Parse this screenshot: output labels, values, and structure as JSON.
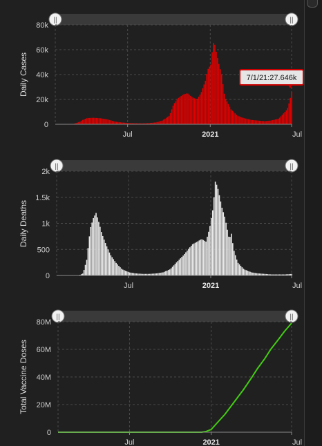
{
  "colors": {
    "cases": "#e00000",
    "deaths": "#eaeaea",
    "vaccine_line": "#44cc11",
    "background": "#202020"
  },
  "chart_data": [
    {
      "type": "bar",
      "ylabel": "Daily Cases",
      "ylim": [
        0,
        80000
      ],
      "y_ticks": [
        0,
        20000,
        40000,
        60000,
        80000
      ],
      "y_tick_labels": [
        "0",
        "20k",
        "40k",
        "60k",
        "80k"
      ],
      "x_ticks": [
        "2020-07-01",
        "2021-01-01",
        "2021-07-01"
      ],
      "x_tick_labels": [
        "Jul",
        "2021",
        "Jul"
      ],
      "x_range": [
        "2020-01-22",
        "2021-07-01"
      ],
      "grid": true,
      "series": [
        {
          "x": [
            "2020-01-22",
            "2020-03-01",
            "2020-03-15",
            "2020-03-22",
            "2020-04-01",
            "2020-04-15",
            "2020-05-01",
            "2020-05-15",
            "2020-06-01",
            "2020-06-15",
            "2020-07-01",
            "2020-07-15",
            "2020-08-01",
            "2020-08-15",
            "2020-09-01",
            "2020-09-15",
            "2020-10-01",
            "2020-10-10",
            "2020-10-20",
            "2020-11-01",
            "2020-11-10",
            "2020-11-20",
            "2020-12-01",
            "2020-12-10",
            "2020-12-20",
            "2020-12-25",
            "2021-01-01",
            "2021-01-04",
            "2021-01-08",
            "2021-01-12",
            "2021-01-18",
            "2021-01-25",
            "2021-02-01",
            "2021-02-15",
            "2021-03-01",
            "2021-03-15",
            "2021-04-01",
            "2021-04-15",
            "2021-05-01",
            "2021-05-15",
            "2021-06-01",
            "2021-06-10",
            "2021-06-20",
            "2021-06-25",
            "2021-07-01"
          ],
          "values": [
            0,
            200,
            2000,
            3500,
            5000,
            5200,
            4800,
            4000,
            2200,
            1500,
            1000,
            800,
            700,
            900,
            1500,
            3000,
            7000,
            16000,
            21000,
            24000,
            25000,
            22000,
            20000,
            25000,
            35000,
            44000,
            48000,
            58000,
            68000,
            60000,
            50000,
            40000,
            22000,
            12000,
            7000,
            5000,
            3500,
            3000,
            2500,
            3000,
            4500,
            8000,
            12000,
            18000,
            27646
          ]
        }
      ],
      "annotations": [
        "7/1/21:27.646k"
      ]
    },
    {
      "type": "bar",
      "ylabel": "Daily Deaths",
      "ylim": [
        0,
        2000
      ],
      "y_ticks": [
        0,
        500,
        1000,
        1500,
        2000
      ],
      "y_tick_labels": [
        "0",
        "500",
        "1k",
        "1.5k",
        "2k"
      ],
      "x_ticks": [
        "2020-07-01",
        "2021-01-01",
        "2021-07-01"
      ],
      "x_tick_labels": [
        "Jul",
        "2021",
        "Jul"
      ],
      "x_range": [
        "2020-01-22",
        "2021-07-01"
      ],
      "grid": true,
      "series": [
        {
          "x": [
            "2020-01-22",
            "2020-03-10",
            "2020-03-20",
            "2020-03-28",
            "2020-04-05",
            "2020-04-12",
            "2020-04-18",
            "2020-04-25",
            "2020-05-01",
            "2020-05-10",
            "2020-05-20",
            "2020-06-01",
            "2020-06-15",
            "2020-07-01",
            "2020-07-15",
            "2020-08-01",
            "2020-08-15",
            "2020-09-01",
            "2020-09-15",
            "2020-10-01",
            "2020-10-15",
            "2020-11-01",
            "2020-11-10",
            "2020-11-20",
            "2020-12-01",
            "2020-12-10",
            "2020-12-20",
            "2020-12-28",
            "2021-01-05",
            "2021-01-10",
            "2021-01-15",
            "2021-01-20",
            "2021-01-25",
            "2021-02-01",
            "2021-02-10",
            "2021-02-15",
            "2021-02-20",
            "2021-03-01",
            "2021-03-15",
            "2021-04-01",
            "2021-04-15",
            "2021-05-01",
            "2021-05-15",
            "2021-06-01",
            "2021-06-15",
            "2021-07-01"
          ],
          "values": [
            0,
            0,
            40,
            300,
            900,
            1100,
            1200,
            1000,
            800,
            600,
            400,
            250,
            120,
            60,
            40,
            30,
            30,
            40,
            60,
            120,
            250,
            400,
            500,
            600,
            650,
            700,
            650,
            900,
            1300,
            1800,
            1700,
            1500,
            1300,
            1100,
            700,
            800,
            500,
            250,
            120,
            60,
            40,
            30,
            20,
            20,
            20,
            30
          ]
        }
      ]
    },
    {
      "type": "line",
      "ylabel": "Total Vaccine Doses",
      "ylim": [
        0,
        80000000
      ],
      "y_ticks": [
        0,
        20000000,
        40000000,
        60000000,
        80000000
      ],
      "y_tick_labels": [
        "0",
        "20M",
        "40M",
        "60M",
        "80M"
      ],
      "x_ticks": [
        "2020-07-01",
        "2021-01-01",
        "2021-07-01"
      ],
      "x_tick_labels": [
        "Jul",
        "2021",
        "Jul"
      ],
      "x_range": [
        "2020-01-22",
        "2021-07-01"
      ],
      "grid": true,
      "series": [
        {
          "x": [
            "2020-01-22",
            "2020-07-01",
            "2020-12-10",
            "2020-12-20",
            "2021-01-01",
            "2021-01-15",
            "2021-02-01",
            "2021-02-15",
            "2021-03-01",
            "2021-03-15",
            "2021-04-01",
            "2021-04-15",
            "2021-05-01",
            "2021-05-15",
            "2021-06-01",
            "2021-06-15",
            "2021-07-01"
          ],
          "values": [
            0,
            0,
            0,
            500000,
            2000000,
            7000000,
            13000000,
            19000000,
            25000000,
            31000000,
            39000000,
            46000000,
            53000000,
            60000000,
            67000000,
            73000000,
            79000000
          ]
        }
      ]
    }
  ]
}
